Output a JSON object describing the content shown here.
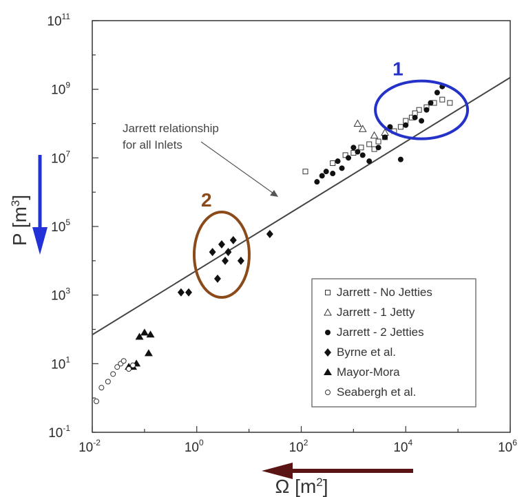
{
  "chart_data": {
    "type": "scatter",
    "x_scale": "log",
    "y_scale": "log",
    "xlim": [
      0.01,
      1000000
    ],
    "ylim": [
      0.1,
      100000000000
    ],
    "x_ticks": [
      {
        "base": "10",
        "exp": "-2"
      },
      {
        "base": "10",
        "exp": "0"
      },
      {
        "base": "10",
        "exp": "2"
      },
      {
        "base": "10",
        "exp": "4"
      },
      {
        "base": "10",
        "exp": "6"
      }
    ],
    "y_ticks": [
      {
        "base": "10",
        "exp": "-1"
      },
      {
        "base": "10",
        "exp": "1"
      },
      {
        "base": "10",
        "exp": "3"
      },
      {
        "base": "10",
        "exp": "5"
      },
      {
        "base": "10",
        "exp": "7"
      },
      {
        "base": "10",
        "exp": "9"
      },
      {
        "base": "10",
        "exp": "11"
      }
    ],
    "xlabel": {
      "main": "Ω [m",
      "sup": "2",
      "end": "]"
    },
    "ylabel": {
      "main": "P [m",
      "sup": "3",
      "end": "]"
    },
    "grid": false,
    "legend_position": "bottom-right",
    "fit_line": {
      "label_line1": "Jarrett relationship",
      "label_line2": "for all Inlets",
      "points": [
        [
          0.01,
          70
        ],
        [
          1000000,
          2200000000
        ]
      ]
    },
    "annotations": [
      {
        "label": "1",
        "color": "#2432c8",
        "center": [
          20000,
          250000000
        ]
      },
      {
        "label": "2",
        "color": "#8a4a1a",
        "center": [
          3,
          15000
        ]
      }
    ],
    "series": [
      {
        "name": "Jarrett - No Jetties",
        "marker": "open-square",
        "points": [
          [
            120,
            4000000
          ],
          [
            400,
            7000000
          ],
          [
            700,
            12000000
          ],
          [
            1000,
            14000000
          ],
          [
            1400,
            20000000
          ],
          [
            2000,
            25000000
          ],
          [
            2500,
            18000000
          ],
          [
            3000,
            30000000
          ],
          [
            4000,
            40000000
          ],
          [
            6000,
            60000000
          ],
          [
            8000,
            80000000
          ],
          [
            10000,
            120000000
          ],
          [
            13000,
            150000000
          ],
          [
            18000,
            250000000
          ],
          [
            25000,
            300000000
          ],
          [
            35000,
            400000000
          ],
          [
            50000,
            500000000
          ],
          [
            70000,
            400000000
          ],
          [
            15000,
            200000000
          ]
        ]
      },
      {
        "name": "Jarrett - 1 Jetty",
        "marker": "open-triangle",
        "points": [
          [
            1200,
            100000000
          ],
          [
            1500,
            70000000
          ],
          [
            2500,
            45000000
          ],
          [
            4000,
            55000000
          ]
        ]
      },
      {
        "name": "Jarrett - 2 Jetties",
        "marker": "filled-circle",
        "points": [
          [
            200,
            2000000
          ],
          [
            250,
            3000000
          ],
          [
            300,
            4000000
          ],
          [
            400,
            3500000
          ],
          [
            500,
            8000000
          ],
          [
            600,
            5000000
          ],
          [
            800,
            10000000
          ],
          [
            1000,
            20000000
          ],
          [
            1200,
            15000000
          ],
          [
            1500,
            12000000
          ],
          [
            2000,
            8000000
          ],
          [
            3000,
            20000000
          ],
          [
            4000,
            40000000
          ],
          [
            5000,
            80000000
          ],
          [
            8000,
            9000000
          ],
          [
            10000,
            90000000
          ],
          [
            15000,
            150000000
          ],
          [
            20000,
            120000000
          ],
          [
            25000,
            250000000
          ],
          [
            30000,
            400000000
          ],
          [
            40000,
            800000000
          ],
          [
            50000,
            1200000000
          ]
        ]
      },
      {
        "name": "Byrne et al.",
        "marker": "filled-diamond",
        "points": [
          [
            0.5,
            1200
          ],
          [
            0.7,
            1200
          ],
          [
            2,
            18000
          ],
          [
            2.5,
            3000
          ],
          [
            3,
            30000
          ],
          [
            3.5,
            10000
          ],
          [
            4,
            18000
          ],
          [
            5,
            40000
          ],
          [
            7,
            10000
          ],
          [
            25,
            60000
          ]
        ]
      },
      {
        "name": "Mayor-Mora",
        "marker": "filled-triangle",
        "points": [
          [
            0.05,
            8
          ],
          [
            0.06,
            8
          ],
          [
            0.07,
            10
          ],
          [
            0.08,
            60
          ],
          [
            0.1,
            80
          ],
          [
            0.13,
            70
          ],
          [
            0.12,
            20
          ]
        ]
      },
      {
        "name": "Seabergh et al.",
        "marker": "open-circle",
        "points": [
          [
            0.012,
            0.8
          ],
          [
            0.015,
            2
          ],
          [
            0.02,
            3
          ],
          [
            0.025,
            5
          ],
          [
            0.03,
            8
          ],
          [
            0.035,
            10
          ],
          [
            0.04,
            12
          ],
          [
            0.05,
            7
          ],
          [
            0.06,
            9
          ]
        ]
      }
    ]
  }
}
